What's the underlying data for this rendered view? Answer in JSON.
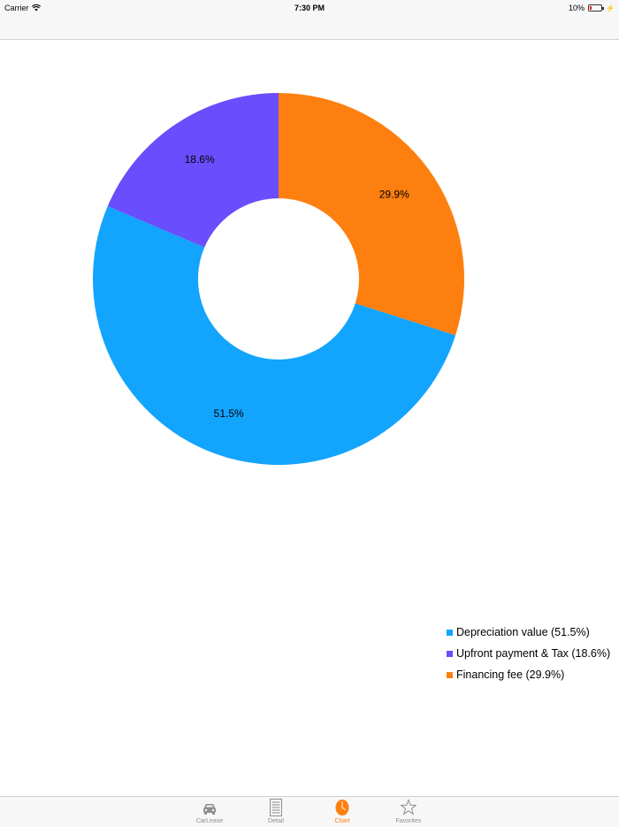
{
  "status_bar": {
    "carrier": "Carrier",
    "time": "7:30 PM",
    "battery": "10%"
  },
  "chart_data": {
    "type": "pie",
    "categories": [
      "Depreciation value",
      "Upfront payment & Tax",
      "Financing fee"
    ],
    "values": [
      51.5,
      18.6,
      29.9
    ],
    "slice_labels": [
      "51.5%",
      "18.6%",
      "29.9%"
    ],
    "colors": [
      "#13a4fd",
      "#6a4dfc",
      "#fd7f0f"
    ],
    "donut": true,
    "legend_position": "bottom-right"
  },
  "legend": {
    "items": [
      {
        "label": "Depreciation value (51.5%)",
        "color": "#13a4fd"
      },
      {
        "label": "Upfront payment & Tax (18.6%)",
        "color": "#6a4dfc"
      },
      {
        "label": "Financing fee (29.9%)",
        "color": "#fd7f0f"
      }
    ]
  },
  "tab_bar": {
    "tabs": [
      {
        "label": "CarLease",
        "icon": "car-icon"
      },
      {
        "label": "Detail",
        "icon": "document-icon"
      },
      {
        "label": "Chart",
        "icon": "pie-chart-icon"
      },
      {
        "label": "Favorites",
        "icon": "star-icon"
      }
    ],
    "active": "Chart",
    "active_color": "#ff7f0e"
  }
}
